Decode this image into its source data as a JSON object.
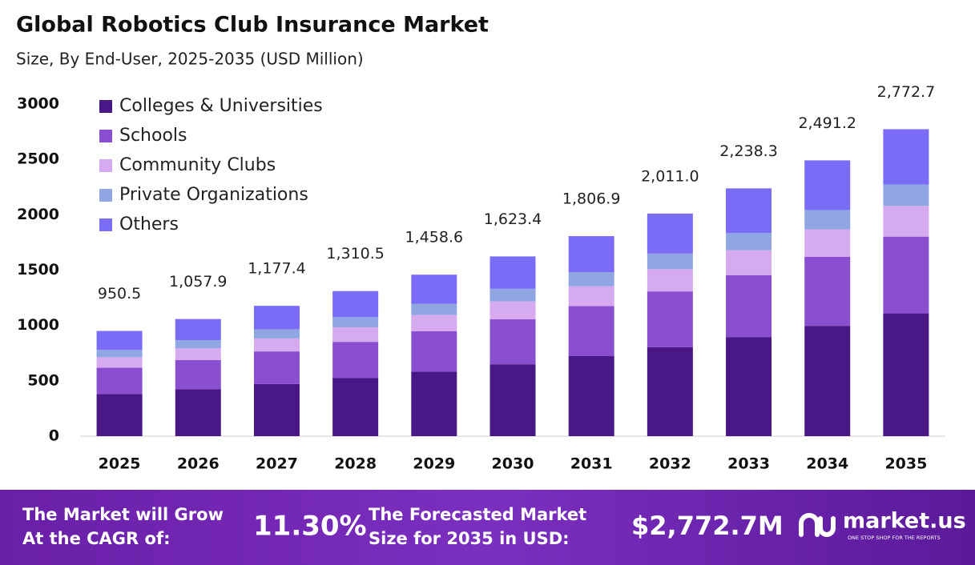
{
  "chart_data": {
    "type": "stacked-bar",
    "title": "Global Robotics Club Insurance Market",
    "subtitle": "Size, By End-User, 2025-2035 (USD Million)",
    "categories": [
      "2025",
      "2026",
      "2027",
      "2028",
      "2029",
      "2030",
      "2031",
      "2032",
      "2033",
      "2034",
      "2035"
    ],
    "series": [
      {
        "name": "Colleges & Universities",
        "color": "#4a1786",
        "values": [
          380.2,
          423.2,
          471.0,
          524.2,
          583.4,
          649.4,
          722.8,
          804.4,
          895.3,
          996.5,
          1109.1
        ]
      },
      {
        "name": "Schools",
        "color": "#8a4fd0",
        "values": [
          237.6,
          264.5,
          294.4,
          327.6,
          364.7,
          405.9,
          451.7,
          502.8,
          559.6,
          622.8,
          693.2
        ]
      },
      {
        "name": "Community Clubs",
        "color": "#d6aaee",
        "values": [
          95.1,
          105.8,
          117.7,
          131.1,
          145.9,
          162.3,
          180.7,
          201.1,
          223.8,
          249.1,
          277.3
        ]
      },
      {
        "name": "Private Organizations",
        "color": "#8fa6e2",
        "values": [
          66.5,
          74.1,
          82.4,
          91.7,
          102.1,
          113.6,
          126.5,
          140.8,
          156.7,
          174.4,
          194.1
        ]
      },
      {
        "name": "Others",
        "color": "#7a6cf7",
        "values": [
          171.1,
          190.3,
          211.9,
          235.9,
          262.5,
          292.2,
          325.2,
          361.9,
          402.9,
          448.4,
          499.0
        ]
      }
    ],
    "totals": [
      950.5,
      1057.9,
      1177.4,
      1310.5,
      1458.6,
      1623.4,
      1806.9,
      2011.0,
      2238.3,
      2491.2,
      2772.7
    ],
    "total_labels": [
      "950.5",
      "1,057.9",
      "1,177.4",
      "1,310.5",
      "1,458.6",
      "1,623.4",
      "1,806.9",
      "2,011.0",
      "2,238.3",
      "2,491.2",
      "2,772.7"
    ],
    "ylim": [
      0,
      3000
    ],
    "yticks": [
      0,
      500,
      1000,
      1500,
      2000,
      2500,
      3000
    ],
    "grid": false,
    "legend": "top-left"
  },
  "footer": {
    "cagr_text": "The Market will Grow At the CAGR of:",
    "cagr_value": "11.30%",
    "forecast_text": "The Forecasted Market Size for 2035 in USD:",
    "forecast_value": "$2,772.7M",
    "brand": "market.us",
    "tagline": "ONE STOP SHOP FOR THE REPORTS"
  }
}
